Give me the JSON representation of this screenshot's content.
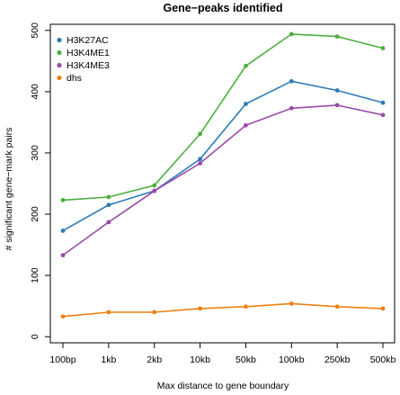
{
  "chart_data": {
    "type": "line",
    "title": "Gene−peaks identified",
    "xlabel": "Max distance to gene boundary",
    "ylabel": "# significant gene−mark pairs",
    "categories": [
      "100bp",
      "1kb",
      "2kb",
      "10kb",
      "50kb",
      "100kb",
      "250kb",
      "500kb"
    ],
    "ylim": [
      -10,
      510
    ],
    "yticks": [
      0,
      100,
      200,
      300,
      400,
      500
    ],
    "grid": false,
    "legend_position": "top-left",
    "series": [
      {
        "name": "H3K27AC",
        "color": "#2f7bb7",
        "values": [
          173,
          215,
          238,
          290,
          380,
          417,
          402,
          382
        ]
      },
      {
        "name": "H3K4ME1",
        "color": "#4caf3e",
        "values": [
          223,
          228,
          247,
          331,
          442,
          494,
          490,
          471
        ]
      },
      {
        "name": "H3K4ME3",
        "color": "#9a4aa8",
        "values": [
          133,
          187,
          238,
          283,
          345,
          373,
          378,
          362
        ]
      },
      {
        "name": "dhs",
        "color": "#f07f12",
        "values": [
          33,
          40,
          40,
          46,
          49,
          54,
          49,
          46
        ]
      }
    ]
  }
}
